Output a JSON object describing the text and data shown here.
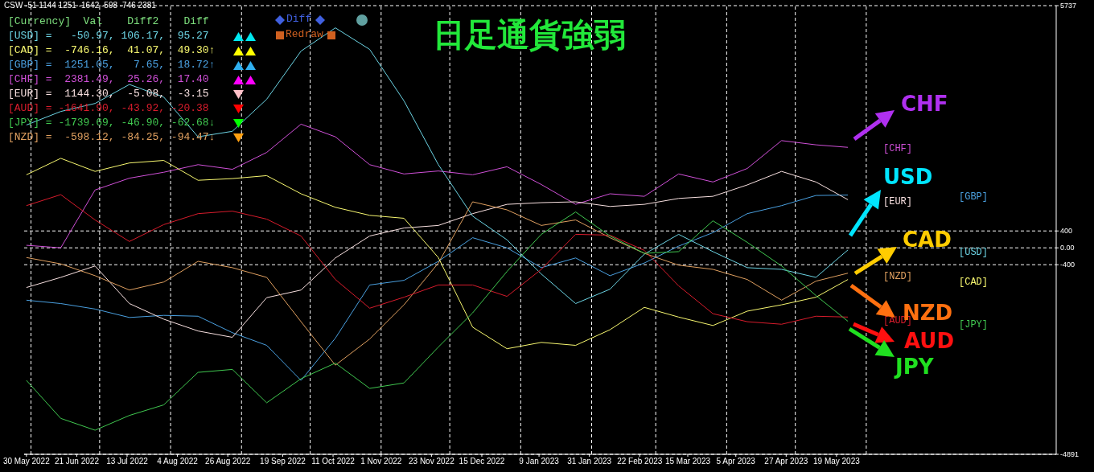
{
  "chart_data": {
    "type": "line",
    "title": "日足通貨強弱",
    "x": [
      "2022-05-30",
      "2022-06-14",
      "2022-06-29",
      "2022-07-14",
      "2022-07-29",
      "2022-08-13",
      "2022-08-28",
      "2022-09-12",
      "2022-09-27",
      "2022-10-12",
      "2022-10-27",
      "2022-11-11",
      "2022-11-26",
      "2022-12-11",
      "2022-12-26",
      "2023-01-10",
      "2023-01-25",
      "2023-02-09",
      "2023-02-24",
      "2023-03-11",
      "2023-03-26",
      "2023-04-10",
      "2023-04-25",
      "2023-05-10",
      "2023-05-24"
    ],
    "series": [
      {
        "name": "[CHF]",
        "color": "#d050d8",
        "values": [
          60,
          0,
          1370,
          1650,
          1790,
          1970,
          1860,
          2260,
          2930,
          2630,
          1970,
          1750,
          1820,
          1730,
          1920,
          1500,
          1030,
          1280,
          1220,
          1750,
          1560,
          1880,
          2540,
          2440,
          2380
        ]
      },
      {
        "name": "[GBP]",
        "color": "#4aa0e0",
        "values": [
          -1240,
          -1320,
          -1450,
          -1650,
          -1600,
          -1620,
          -2010,
          -2310,
          -3140,
          -2140,
          -880,
          -770,
          -320,
          240,
          0,
          -470,
          -240,
          -660,
          -360,
          40,
          360,
          810,
          1000,
          1240,
          1250
        ]
      },
      {
        "name": "[EUR]",
        "color": "#f8e0e0",
        "values": [
          -940,
          -700,
          -430,
          -1320,
          -1690,
          -1970,
          -2120,
          -1180,
          -1000,
          -240,
          280,
          470,
          530,
          810,
          1030,
          1070,
          1090,
          980,
          1030,
          1170,
          1220,
          1490,
          1810,
          1560,
          1140
        ]
      },
      {
        "name": "[USD]",
        "color": "#6cd4e4",
        "values": [
          2910,
          3230,
          3420,
          3870,
          3570,
          2630,
          2760,
          3520,
          4660,
          5210,
          4700,
          3480,
          1970,
          750,
          190,
          -620,
          -1320,
          -980,
          -150,
          320,
          -90,
          -470,
          -510,
          -700,
          -50
        ]
      },
      {
        "name": "[NZD]",
        "color": "#e0a060",
        "values": [
          -230,
          -380,
          -660,
          -1000,
          -810,
          -320,
          -470,
          -700,
          -1750,
          -2780,
          -2160,
          -1350,
          -360,
          1090,
          900,
          530,
          660,
          240,
          -130,
          -410,
          -510,
          -750,
          -1240,
          -790,
          -600
        ]
      },
      {
        "name": "[CAD]",
        "color": "#f8f870",
        "values": [
          1730,
          2120,
          1810,
          2010,
          2070,
          1600,
          1640,
          1710,
          1280,
          960,
          770,
          700,
          -230,
          -1880,
          -2390,
          -2240,
          -2310,
          -1940,
          -1410,
          -1640,
          -1840,
          -1500,
          -1350,
          -1170,
          -750
        ]
      },
      {
        "name": "[AUD]",
        "color": "#d81c2c",
        "values": [
          1000,
          1260,
          660,
          150,
          550,
          810,
          870,
          680,
          280,
          -750,
          -1430,
          -1170,
          -880,
          -880,
          -1150,
          -510,
          320,
          300,
          -60,
          -900,
          -1560,
          -1750,
          -1810,
          -1620,
          -1640
        ]
      },
      {
        "name": "[JPY]",
        "color": "#40c850",
        "values": [
          -3140,
          -4040,
          -4320,
          -3970,
          -3720,
          -2950,
          -2880,
          -3670,
          -3100,
          -2730,
          -3330,
          -3200,
          -2350,
          -1540,
          -560,
          320,
          850,
          280,
          -130,
          -90,
          640,
          130,
          -430,
          -1130,
          -1740
        ]
      }
    ],
    "xlim": [
      "2022-05-29",
      "2023-08-23"
    ],
    "xticks": [
      {
        "value": "2022-05-30",
        "label": "30 May 2022"
      },
      {
        "value": "2022-06-21",
        "label": "21 Jun 2022"
      },
      {
        "value": "2022-07-13",
        "label": "13 Jul 2022"
      },
      {
        "value": "2022-08-04",
        "label": "4 Aug 2022"
      },
      {
        "value": "2022-08-26",
        "label": "26 Aug 2022"
      },
      {
        "value": "2022-09-19",
        "label": "19 Sep 2022"
      },
      {
        "value": "2022-10-11",
        "label": "11 Oct 2022"
      },
      {
        "value": "2022-11-01",
        "label": "1 Nov 2022"
      },
      {
        "value": "2022-11-23",
        "label": "23 Nov 2022"
      },
      {
        "value": "2022-12-15",
        "label": "15 Dec 2022"
      },
      {
        "value": "2023-01-09",
        "label": "9 Jan 2023"
      },
      {
        "value": "2023-01-31",
        "label": "31 Jan 2023"
      },
      {
        "value": "2023-02-22",
        "label": "22 Feb 2023"
      },
      {
        "value": "2023-03-15",
        "label": "15 Mar 2023"
      },
      {
        "value": "2023-04-05",
        "label": "5 Apr 2023"
      },
      {
        "value": "2023-04-27",
        "label": "27 Apr 2023"
      },
      {
        "value": "2023-05-19",
        "label": "19 May 2023"
      }
    ],
    "ylim": [
      -4891,
      5737
    ],
    "yticks": [
      -4891,
      -400,
      {
        "value": 0,
        "label": "0.00"
      },
      400,
      5737
    ],
    "grid": "y",
    "ref_lines": [
      {
        "axis": "x",
        "value": "2022-06-01",
        "line_style": "dashed",
        "color": "#ffffff"
      },
      {
        "axis": "x",
        "value": "2022-07-01",
        "line_style": "dashed",
        "color": "#ffffff"
      },
      {
        "axis": "x",
        "value": "2022-08-01",
        "line_style": "dashed",
        "color": "#ffffff"
      },
      {
        "axis": "x",
        "value": "2022-09-01",
        "line_style": "dashed",
        "color": "#ffffff"
      },
      {
        "axis": "x",
        "value": "2022-10-01",
        "line_style": "dashed",
        "color": "#ffffff"
      },
      {
        "axis": "x",
        "value": "2022-11-01",
        "line_style": "dashed",
        "color": "#ffffff"
      },
      {
        "axis": "x",
        "value": "2022-12-01",
        "line_style": "dashed",
        "color": "#ffffff"
      },
      {
        "axis": "x",
        "value": "2023-01-01",
        "line_style": "dashed",
        "color": "#ffffff"
      },
      {
        "axis": "x",
        "value": "2023-02-01",
        "line_style": "dashed",
        "color": "#ffffff"
      },
      {
        "axis": "x",
        "value": "2023-03-01",
        "line_style": "dashed",
        "color": "#ffffff"
      },
      {
        "axis": "x",
        "value": "2023-04-01",
        "line_style": "dashed",
        "color": "#ffffff"
      },
      {
        "axis": "x",
        "value": "2023-05-01",
        "line_style": "dashed",
        "color": "#ffffff"
      },
      {
        "axis": "x",
        "value": "2023-06-01",
        "line_style": "dashed",
        "color": "#ffffff"
      }
    ],
    "annotations": [
      "CSW -51 1144 1251 -1642 -598 -746 2381",
      "[Currency]  Val    Diff2    Diff",
      "[USD] =   -50.97, 106.17,  95.27",
      "[CAD] =  -746.16,  41.07,  49.30↑",
      "[GBP] =  1251.05,   7.65,  18.72↑",
      "[CHF] =  2381.49,  25.26,  17.40",
      "[EUR] =  1144.30,  -5.08,  -3.15",
      "[AUD] = -1641.90, -43.92, -20.38",
      "[JPY] = -1739.69, -46.90, -62.68↓",
      "[NZD] =  -598.12, -84.25, -94.47↓",
      "Diff",
      "Redraw",
      "CHF",
      "USD",
      "CAD",
      "NZD",
      "AUD",
      "JPY"
    ],
    "legend": false,
    "marker": "none",
    "line_style": "solid"
  }
}
